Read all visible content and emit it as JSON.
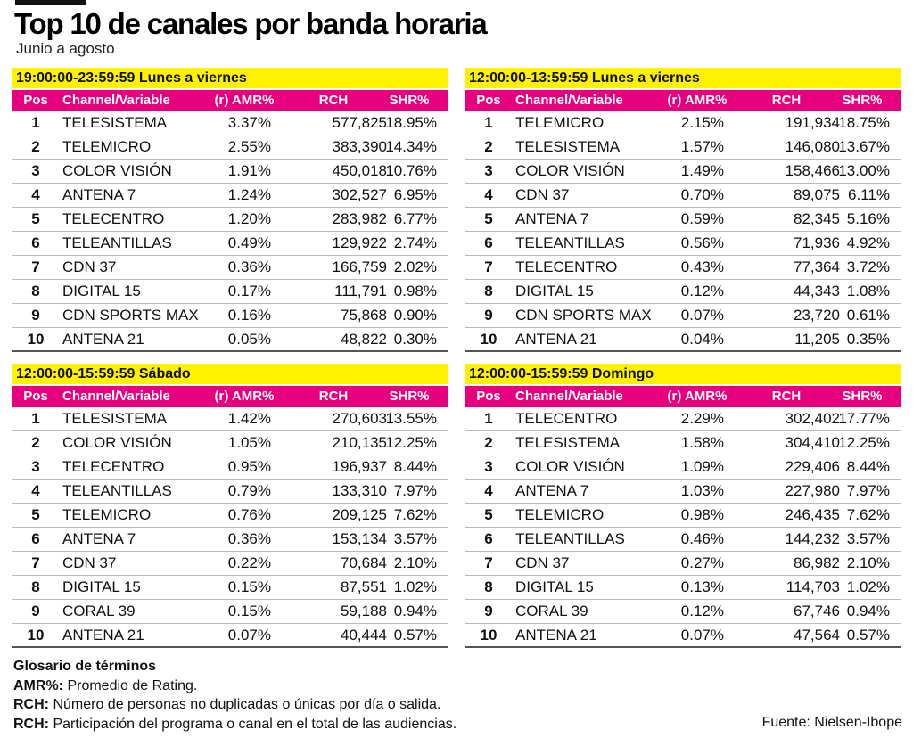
{
  "title": "Top 10 de canales por banda horaria",
  "subtitle": "Junio a agosto",
  "columns": [
    "Pos",
    "Channel/Variable",
    "(r) AMR%",
    "RCH",
    "SHR%"
  ],
  "colors": {
    "header_yellow": "#fff200",
    "header_pink": "#e6007e"
  },
  "tables": [
    {
      "heading": "19:00:00-23:59:59 Lunes a viernes",
      "rows": [
        [
          "1",
          "TELESISTEMA",
          "3.37%",
          "577,825",
          "18.95%"
        ],
        [
          "2",
          "TELEMICRO",
          "2.55%",
          "383,390",
          "14.34%"
        ],
        [
          "3",
          "COLOR VISIÓN",
          "1.91%",
          "450,018",
          "10.76%"
        ],
        [
          "4",
          "ANTENA 7",
          "1.24%",
          "302,527",
          "6.95%"
        ],
        [
          "5",
          "TELECENTRO",
          "1.20%",
          "283,982",
          "6.77%"
        ],
        [
          "6",
          "TELEANTILLAS",
          "0.49%",
          "129,922",
          "2.74%"
        ],
        [
          "7",
          "CDN 37",
          "0.36%",
          "166,759",
          "2.02%"
        ],
        [
          "8",
          "DIGITAL 15",
          "0.17%",
          "111,791",
          "0.98%"
        ],
        [
          "9",
          "CDN SPORTS MAX",
          "0.16%",
          "75,868",
          "0.90%"
        ],
        [
          "10",
          "ANTENA 21",
          "0.05%",
          "48,822",
          "0.30%"
        ]
      ]
    },
    {
      "heading": "12:00:00-13:59:59 Lunes a viernes",
      "rows": [
        [
          "1",
          "TELEMICRO",
          "2.15%",
          "191,934",
          "18.75%"
        ],
        [
          "2",
          "TELESISTEMA",
          "1.57%",
          "146,080",
          "13.67%"
        ],
        [
          "3",
          "COLOR VISIÓN",
          "1.49%",
          "158,466",
          "13.00%"
        ],
        [
          "4",
          "CDN 37",
          "0.70%",
          "89,075",
          "6.11%"
        ],
        [
          "5",
          "ANTENA 7",
          "0.59%",
          "82,345",
          "5.16%"
        ],
        [
          "6",
          "TELEANTILLAS",
          "0.56%",
          "71,936",
          "4.92%"
        ],
        [
          "7",
          "TELECENTRO",
          "0.43%",
          "77,364",
          "3.72%"
        ],
        [
          "8",
          "DIGITAL 15",
          "0.12%",
          "44,343",
          "1.08%"
        ],
        [
          "9",
          "CDN SPORTS MAX",
          "0.07%",
          "23,720",
          "0.61%"
        ],
        [
          "10",
          "ANTENA 21",
          "0.04%",
          "11,205",
          "0.35%"
        ]
      ]
    },
    {
      "heading": "12:00:00-15:59:59 Sábado",
      "rows": [
        [
          "1",
          "TELESISTEMA",
          "1.42%",
          "270,603",
          "13.55%"
        ],
        [
          "2",
          "COLOR VISIÓN",
          "1.05%",
          "210,135",
          "12.25%"
        ],
        [
          "3",
          "TELECENTRO",
          "0.95%",
          "196,937",
          "8.44%"
        ],
        [
          "4",
          "TELEANTILLAS",
          "0.79%",
          "133,310",
          "7.97%"
        ],
        [
          "5",
          "TELEMICRO",
          "0.76%",
          "209,125",
          "7.62%"
        ],
        [
          "6",
          "ANTENA 7",
          "0.36%",
          "153,134",
          "3.57%"
        ],
        [
          "7",
          "CDN 37",
          "0.22%",
          "70,684",
          "2.10%"
        ],
        [
          "8",
          "DIGITAL 15",
          "0.15%",
          "87,551",
          "1.02%"
        ],
        [
          "9",
          "CORAL 39",
          "0.15%",
          "59,188",
          "0.94%"
        ],
        [
          "10",
          "ANTENA 21",
          "0.07%",
          "40,444",
          "0.57%"
        ]
      ]
    },
    {
      "heading": "12:00:00-15:59:59 Domingo",
      "rows": [
        [
          "1",
          "TELECENTRO",
          "2.29%",
          "302,402",
          "17.77%"
        ],
        [
          "2",
          "TELESISTEMA",
          "1.58%",
          "304,410",
          "12.25%"
        ],
        [
          "3",
          "COLOR VISIÓN",
          "1.09%",
          "229,406",
          "8.44%"
        ],
        [
          "4",
          "ANTENA 7",
          "1.03%",
          "227,980",
          "7.97%"
        ],
        [
          "5",
          "TELEMICRO",
          "0.98%",
          "246,435",
          "7.62%"
        ],
        [
          "6",
          "TELEANTILLAS",
          "0.46%",
          "144,232",
          "3.57%"
        ],
        [
          "7",
          "CDN 37",
          "0.27%",
          "86,982",
          "2.10%"
        ],
        [
          "8",
          "DIGITAL 15",
          "0.13%",
          "114,703",
          "1.02%"
        ],
        [
          "9",
          "CORAL 39",
          "0.12%",
          "67,746",
          "0.94%"
        ],
        [
          "10",
          "ANTENA 21",
          "0.07%",
          "47,564",
          "0.57%"
        ]
      ]
    }
  ],
  "glossary": {
    "title": "Glosario de términos",
    "items": [
      {
        "term": "AMR%:",
        "def": " Promedio de Rating."
      },
      {
        "term": "RCH:",
        "def": " Número de personas no duplicadas o únicas por día o salida."
      },
      {
        "term": "RCH:",
        "def": " Participación del programa o canal en el total de las audiencias."
      }
    ]
  },
  "source": "Fuente: Nielsen-Ibope"
}
